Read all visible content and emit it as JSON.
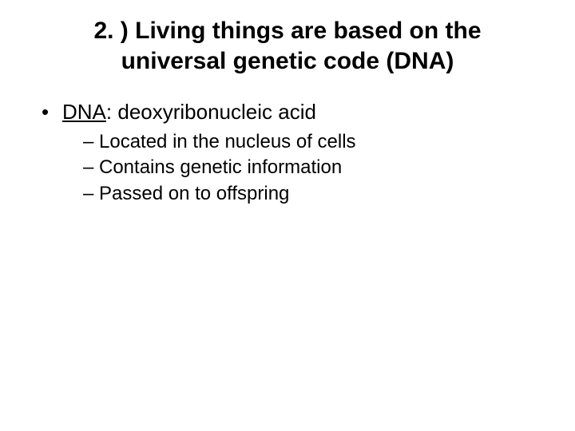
{
  "title_line1": "2. ) Living things are based on the",
  "title_line2": "universal genetic code (DNA)",
  "bullet": {
    "term": "DNA",
    "definition": ": deoxyribonucleic acid",
    "subitems": [
      "Located in the nucleus of cells",
      "Contains genetic information",
      "Passed on to offspring"
    ]
  },
  "colors": {
    "background": "#ffffff",
    "text": "#000000"
  },
  "fonts": {
    "family": "Arial",
    "title_size_pt": 30,
    "title_weight": "bold",
    "level1_size_pt": 26,
    "level2_size_pt": 24
  }
}
